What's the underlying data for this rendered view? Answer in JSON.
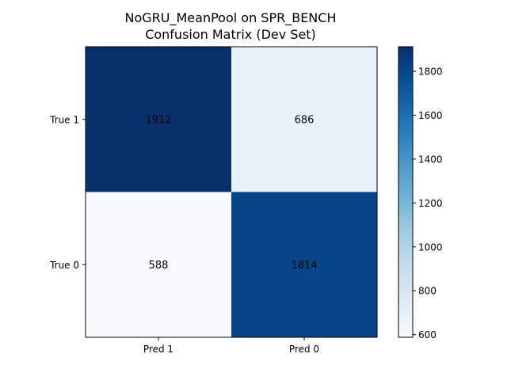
{
  "chart_data": {
    "type": "heatmap",
    "title_lines": [
      "NoGRU_MeanPool on SPR_BENCH",
      "Confusion Matrix (Dev Set)"
    ],
    "x_categories": [
      "Pred 1",
      "Pred 0"
    ],
    "y_categories": [
      "True 1",
      "True 0"
    ],
    "values": [
      [
        1912,
        686
      ],
      [
        588,
        1814
      ]
    ],
    "colormap": "Blues",
    "color_range": [
      588,
      1912
    ],
    "colorbar_ticks": [
      600,
      800,
      1000,
      1200,
      1400,
      1600,
      1800
    ]
  }
}
